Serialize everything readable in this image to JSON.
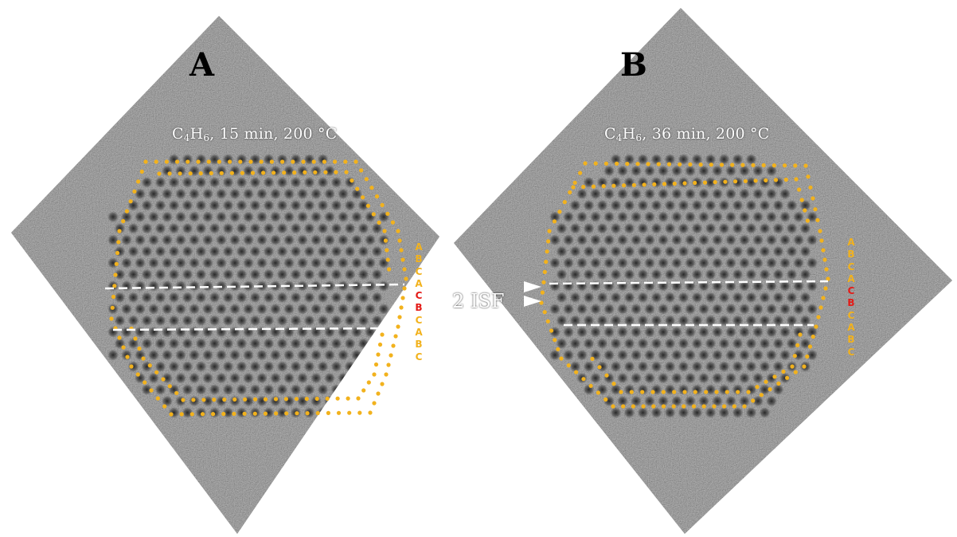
{
  "panels": [
    {
      "label": "A",
      "condition": {
        "formula_c": "C",
        "sub_c": "4",
        "formula_h": "H",
        "sub_h": "6",
        "rest": ", 15 min, 200 °C"
      },
      "stacking": [
        {
          "letter": "A",
          "color": "#f2b21d"
        },
        {
          "letter": "B",
          "color": "#f2b21d"
        },
        {
          "letter": "C",
          "color": "#f2b21d"
        },
        {
          "letter": "A",
          "color": "#f2b21d"
        },
        {
          "letter": "C",
          "color": "#e41b17"
        },
        {
          "letter": "B",
          "color": "#e41b17"
        },
        {
          "letter": "C",
          "color": "#f2b21d"
        },
        {
          "letter": "A",
          "color": "#f2b21d"
        },
        {
          "letter": "B",
          "color": "#f2b21d"
        },
        {
          "letter": "C",
          "color": "#f2b21d"
        }
      ]
    },
    {
      "label": "B",
      "condition": {
        "formula_c": "C",
        "sub_c": "4",
        "formula_h": "H",
        "sub_h": "6",
        "rest": ", 36 min, 200 °C"
      },
      "stacking": [
        {
          "letter": "A",
          "color": "#f2b21d"
        },
        {
          "letter": "B",
          "color": "#f2b21d"
        },
        {
          "letter": "C",
          "color": "#f2b21d"
        },
        {
          "letter": "A",
          "color": "#f2b21d"
        },
        {
          "letter": "C",
          "color": "#e41b17"
        },
        {
          "letter": "B",
          "color": "#e41b17"
        },
        {
          "letter": "C",
          "color": "#f2b21d"
        },
        {
          "letter": "A",
          "color": "#f2b21d"
        },
        {
          "letter": "B",
          "color": "#f2b21d"
        },
        {
          "letter": "C",
          "color": "#f2b21d"
        }
      ]
    }
  ],
  "defect_label": "2 ISF",
  "colors": {
    "background": "#ffffff",
    "micrograph": "#7a7a7a",
    "atom_marker": "#f2b21d",
    "fault_marker": "#e41b17",
    "guide_line": "#ffffff"
  }
}
